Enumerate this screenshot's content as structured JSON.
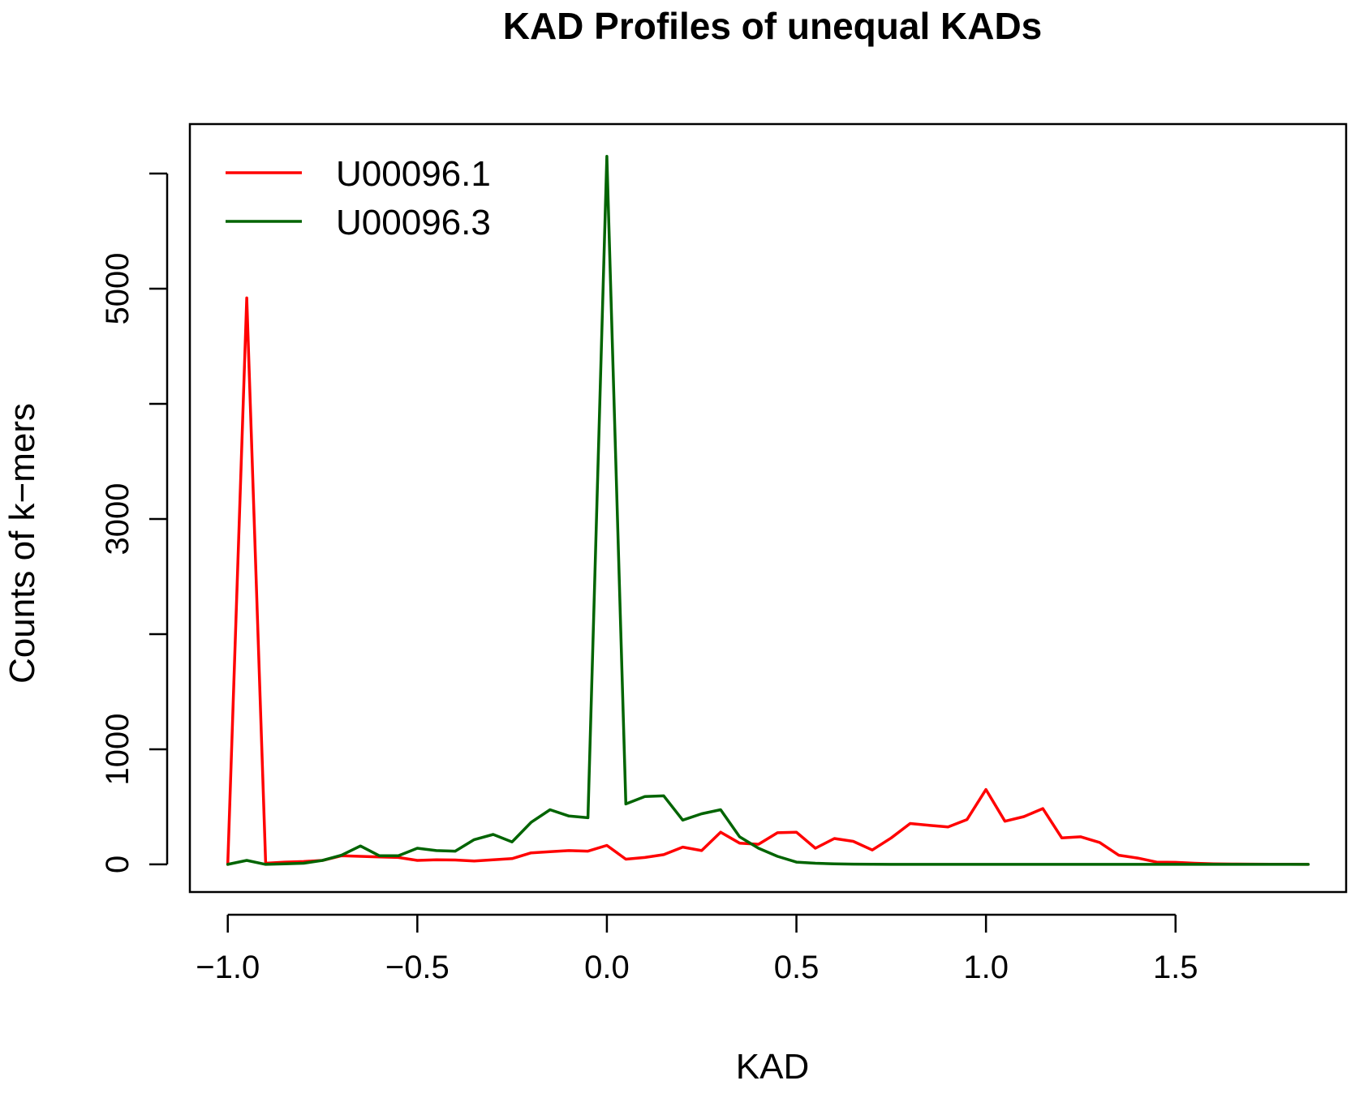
{
  "chart_data": {
    "type": "line",
    "title": "KAD Profiles of unequal KADs",
    "xlabel": "KAD",
    "ylabel": "Counts of k−mers",
    "xlim": [
      -1.1,
      1.95
    ],
    "ylim": [
      -240,
      6430
    ],
    "x_ticks": [
      -1.0,
      -0.5,
      0.0,
      0.5,
      1.0,
      1.5
    ],
    "x_tick_labels": [
      "−1.0",
      "−0.5",
      "0.0",
      "0.5",
      "1.0",
      "1.5"
    ],
    "y_ticks": [
      0,
      1000,
      2000,
      3000,
      4000,
      5000,
      6000
    ],
    "y_tick_labels": [
      "0",
      "1000",
      "",
      "3000",
      "",
      "5000",
      ""
    ],
    "grid": false,
    "legend_position": "top-left",
    "x": [
      -1.0,
      -0.95,
      -0.9,
      -0.85,
      -0.8,
      -0.75,
      -0.7,
      -0.65,
      -0.6,
      -0.55,
      -0.5,
      -0.45,
      -0.4,
      -0.35,
      -0.3,
      -0.25,
      -0.2,
      -0.15,
      -0.1,
      -0.05,
      0.0,
      0.05,
      0.1,
      0.15,
      0.2,
      0.25,
      0.3,
      0.35,
      0.4,
      0.45,
      0.5,
      0.55,
      0.6,
      0.65,
      0.7,
      0.75,
      0.8,
      0.85,
      0.9,
      0.95,
      1.0,
      1.05,
      1.1,
      1.15,
      1.2,
      1.25,
      1.3,
      1.35,
      1.4,
      1.45,
      1.5,
      1.55,
      1.6,
      1.65,
      1.7,
      1.75,
      1.8,
      1.85
    ],
    "series": [
      {
        "name": "U00096.1",
        "color": "#ff0000",
        "values": [
          0,
          4920,
          10,
          20,
          25,
          35,
          75,
          70,
          65,
          60,
          35,
          40,
          38,
          30,
          40,
          50,
          100,
          110,
          120,
          115,
          165,
          45,
          60,
          85,
          150,
          120,
          280,
          185,
          175,
          275,
          280,
          140,
          225,
          200,
          125,
          230,
          355,
          340,
          325,
          390,
          650,
          375,
          415,
          485,
          230,
          240,
          190,
          80,
          55,
          20,
          18,
          10,
          5,
          3,
          2,
          1,
          1,
          0
        ]
      },
      {
        "name": "U00096.3",
        "color": "#006400",
        "values": [
          0,
          35,
          0,
          5,
          10,
          35,
          80,
          160,
          75,
          75,
          140,
          120,
          115,
          215,
          260,
          195,
          365,
          475,
          420,
          405,
          6150,
          525,
          590,
          595,
          385,
          440,
          475,
          240,
          140,
          70,
          20,
          10,
          5,
          2,
          1,
          0,
          0,
          0,
          0,
          0,
          0,
          0,
          0,
          0,
          0,
          0,
          0,
          0,
          0,
          0,
          0,
          0,
          0,
          0,
          0,
          0,
          0,
          0
        ]
      }
    ]
  }
}
